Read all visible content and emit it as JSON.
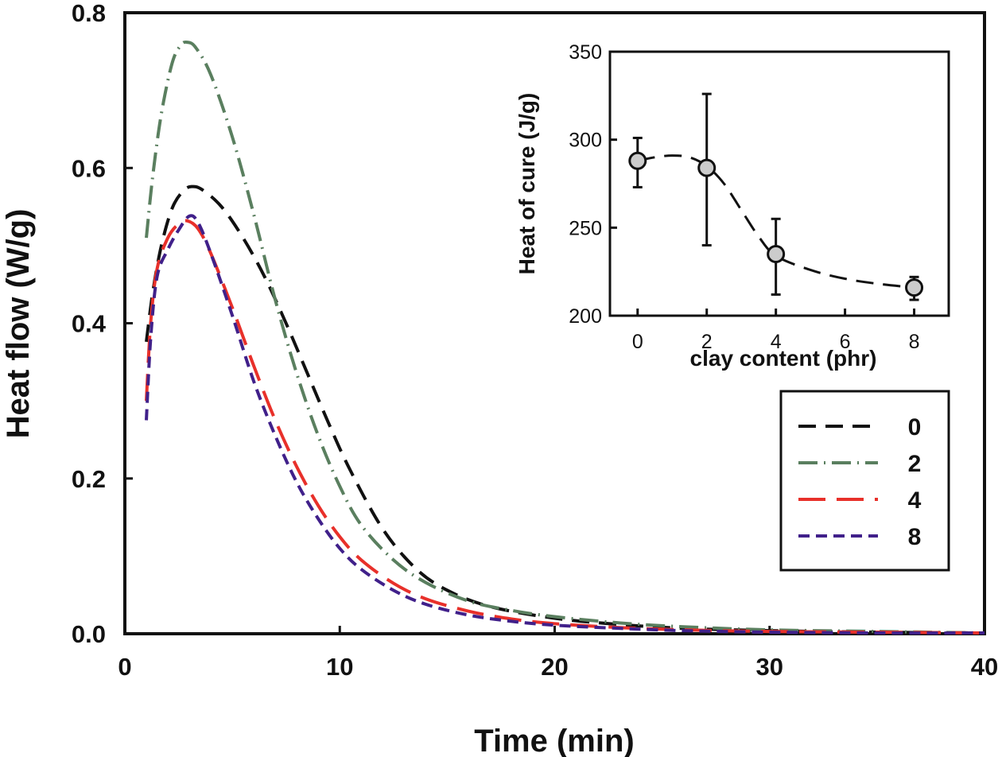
{
  "chart_data": [
    {
      "type": "line",
      "title": "",
      "xlabel": "Time (min)",
      "ylabel": "Heat flow (W/g)",
      "xlim": [
        0,
        40
      ],
      "ylim": [
        0,
        0.8
      ],
      "xticks": [
        "0",
        "10",
        "20",
        "30",
        "40"
      ],
      "yticks": [
        "0.0",
        "0.2",
        "0.4",
        "0.6",
        "0.8"
      ],
      "grid": false,
      "legend_position": "right-middle",
      "series": [
        {
          "name": "0",
          "color": "#111111",
          "dash": "long-dash",
          "x": [
            1.0,
            1.3,
            1.7,
            2.2,
            2.7,
            3.1,
            3.6,
            4.5,
            5.5,
            6.5,
            7.5,
            8.5,
            9.5,
            10.5,
            12,
            13.5,
            15,
            17,
            20,
            23,
            26,
            30,
            35,
            40
          ],
          "y": [
            0.376,
            0.44,
            0.5,
            0.548,
            0.57,
            0.576,
            0.572,
            0.55,
            0.51,
            0.46,
            0.4,
            0.335,
            0.27,
            0.21,
            0.135,
            0.085,
            0.056,
            0.035,
            0.02,
            0.012,
            0.007,
            0.004,
            0.002,
            0.001
          ]
        },
        {
          "name": "2",
          "color": "#5a7f5f",
          "dash": "dash-dot-dot",
          "x": [
            1.0,
            1.3,
            1.7,
            2.2,
            2.6,
            2.9,
            3.3,
            4.0,
            5.0,
            6.0,
            7.0,
            8.0,
            9.0,
            10.0,
            11.0,
            12.5,
            14,
            16,
            18,
            20,
            23,
            26,
            30,
            35,
            40
          ],
          "y": [
            0.51,
            0.59,
            0.67,
            0.735,
            0.758,
            0.762,
            0.755,
            0.72,
            0.64,
            0.54,
            0.43,
            0.335,
            0.255,
            0.19,
            0.14,
            0.095,
            0.066,
            0.042,
            0.03,
            0.022,
            0.014,
            0.009,
            0.005,
            0.003,
            0.001
          ]
        },
        {
          "name": "4",
          "color": "#e8302a",
          "dash": "extra-long-dash",
          "x": [
            1.0,
            1.2,
            1.5,
            2.0,
            2.5,
            2.9,
            3.4,
            4.0,
            5.0,
            6.0,
            7.0,
            8.0,
            9.0,
            10.0,
            11.0,
            12.5,
            14,
            16,
            18,
            20,
            23,
            26,
            30,
            35,
            40
          ],
          "y": [
            0.3,
            0.4,
            0.47,
            0.51,
            0.528,
            0.532,
            0.522,
            0.49,
            0.42,
            0.345,
            0.275,
            0.215,
            0.165,
            0.125,
            0.095,
            0.065,
            0.045,
            0.029,
            0.019,
            0.013,
            0.008,
            0.005,
            0.003,
            0.002,
            0.001
          ]
        },
        {
          "name": "8",
          "color": "#40208a",
          "dash": "short-dash",
          "x": [
            1.0,
            1.2,
            1.5,
            2.0,
            2.5,
            3.0,
            3.4,
            4.0,
            5.0,
            6.0,
            7.0,
            8.0,
            9.0,
            10.0,
            11.0,
            12.5,
            14,
            16,
            18,
            20,
            23,
            26,
            30,
            35,
            40
          ],
          "y": [
            0.275,
            0.38,
            0.46,
            0.495,
            0.52,
            0.538,
            0.53,
            0.49,
            0.41,
            0.325,
            0.255,
            0.195,
            0.148,
            0.11,
            0.083,
            0.056,
            0.038,
            0.024,
            0.016,
            0.011,
            0.007,
            0.004,
            0.002,
            0.001,
            0.001
          ]
        }
      ]
    },
    {
      "type": "scatter",
      "title": "",
      "xlabel": "clay content (phr)",
      "ylabel": "Heat of cure (J/g)",
      "xlim": [
        -0.8,
        9.0
      ],
      "ylim": [
        200,
        350
      ],
      "xticks": [
        "0",
        "2",
        "4",
        "6",
        "8"
      ],
      "yticks": [
        "200",
        "250",
        "300",
        "350"
      ],
      "grid": false,
      "legend_position": "none",
      "inset_position": "top-right",
      "marker_color": "#cccccc",
      "points": [
        {
          "x": 0,
          "y": 288,
          "err_low": 273,
          "err_high": 301
        },
        {
          "x": 2,
          "y": 284,
          "err_low": 240,
          "err_high": 326
        },
        {
          "x": 4,
          "y": 235,
          "err_low": 212,
          "err_high": 255
        },
        {
          "x": 8,
          "y": 216,
          "err_low": 209,
          "err_high": 222
        }
      ],
      "fit_curve": {
        "x": [
          0,
          0.5,
          1,
          1.5,
          2,
          2.5,
          3,
          3.5,
          4,
          5,
          6,
          7,
          8
        ],
        "y": [
          288,
          290,
          291,
          290,
          285,
          275,
          260,
          245,
          234,
          226,
          221,
          218,
          216
        ]
      }
    }
  ]
}
